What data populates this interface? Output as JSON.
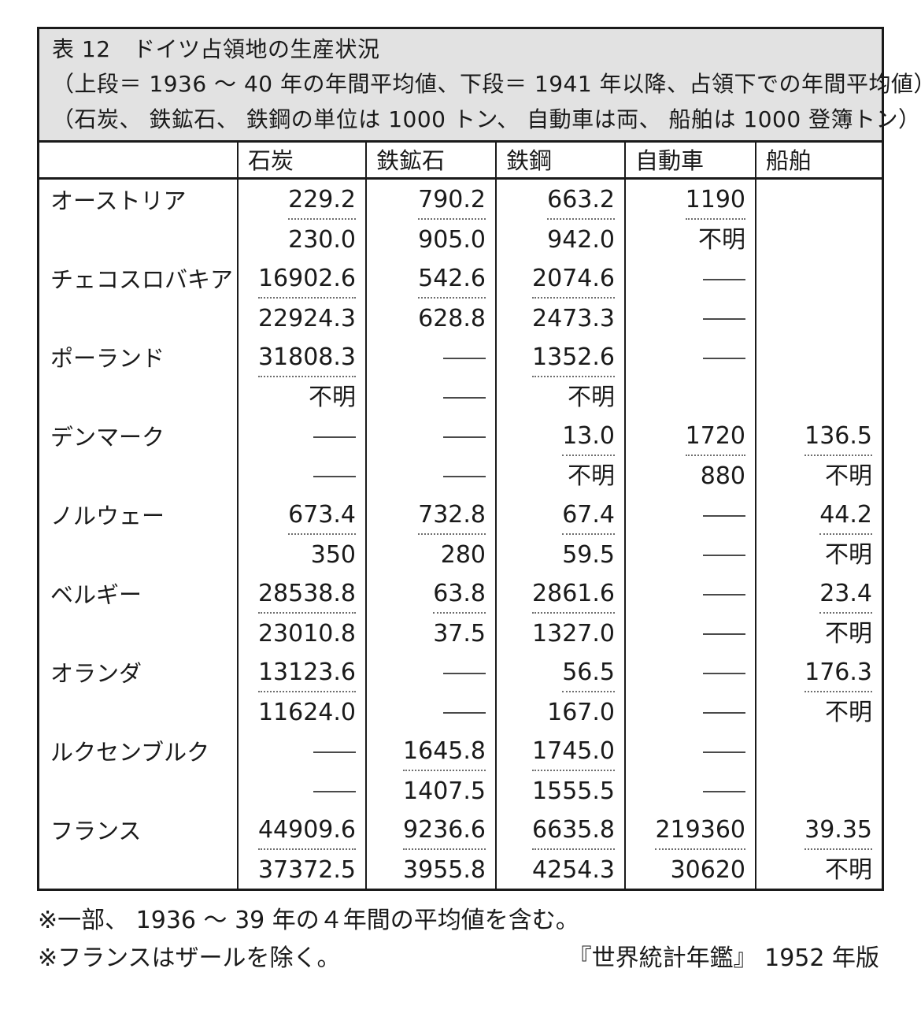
{
  "title": {
    "line1": "表 12　ドイツ占領地の生産状況",
    "line2": "（上段＝ 1936 〜 40 年の年間平均値、下段＝ 1941 年以降、占領下での年間平均値）",
    "line3": "（石炭、 鉄鉱石、 鉄鋼の単位は 1000 トン、 自動車は両、 船舶は 1000 登簿トン）"
  },
  "table": {
    "columns": [
      "石炭",
      "鉄鉱石",
      "鉄鋼",
      "自動車",
      "船舶"
    ],
    "row_structure": "each cell = [上段 1936-40 avg, 下段 1941+ avg]; — = dash (none), 不明 = unknown, empty = blank",
    "rows": [
      {
        "name": "オーストリア",
        "cells": [
          [
            "229.2",
            "230.0"
          ],
          [
            "790.2",
            "905.0"
          ],
          [
            "663.2",
            "942.0"
          ],
          [
            "1190",
            "不明"
          ],
          [
            "",
            ""
          ]
        ]
      },
      {
        "name": "チェコスロバキア",
        "cells": [
          [
            "16902.6",
            "22924.3"
          ],
          [
            "542.6",
            "628.8"
          ],
          [
            "2074.6",
            "2473.3"
          ],
          [
            "—",
            "—"
          ],
          [
            "",
            ""
          ]
        ]
      },
      {
        "name": "ポーランド",
        "cells": [
          [
            "31808.3",
            "不明"
          ],
          [
            "—",
            "—"
          ],
          [
            "1352.6",
            "不明"
          ],
          [
            "—",
            ""
          ],
          [
            "",
            ""
          ]
        ]
      },
      {
        "name": "デンマーク",
        "cells": [
          [
            "—",
            "—"
          ],
          [
            "—",
            "—"
          ],
          [
            "13.0",
            "不明"
          ],
          [
            "1720",
            "880"
          ],
          [
            "136.5",
            "不明"
          ]
        ]
      },
      {
        "name": "ノルウェー",
        "cells": [
          [
            "673.4",
            "350"
          ],
          [
            "732.8",
            "280"
          ],
          [
            "67.4",
            "59.5"
          ],
          [
            "—",
            "—"
          ],
          [
            "44.2",
            "不明"
          ]
        ]
      },
      {
        "name": "ベルギー",
        "cells": [
          [
            "28538.8",
            "23010.8"
          ],
          [
            "63.8",
            "37.5"
          ],
          [
            "2861.6",
            "1327.0"
          ],
          [
            "—",
            "—"
          ],
          [
            "23.4",
            "不明"
          ]
        ]
      },
      {
        "name": "オランダ",
        "cells": [
          [
            "13123.6",
            "11624.0"
          ],
          [
            "—",
            "—"
          ],
          [
            "56.5",
            "167.0"
          ],
          [
            "—",
            "—"
          ],
          [
            "176.3",
            "不明"
          ]
        ]
      },
      {
        "name": "ルクセンブルク",
        "cells": [
          [
            "—",
            "—"
          ],
          [
            "1645.8",
            "1407.5"
          ],
          [
            "1745.0",
            "1555.5"
          ],
          [
            "—",
            "—"
          ],
          [
            "",
            ""
          ]
        ]
      },
      {
        "name": "フランス",
        "cells": [
          [
            "44909.6",
            "37372.5"
          ],
          [
            "9236.6",
            "3955.8"
          ],
          [
            "6635.8",
            "4254.3"
          ],
          [
            "219360",
            "30620"
          ],
          [
            "39.35",
            "不明"
          ]
        ]
      }
    ]
  },
  "notes": {
    "note1": "※一部、 1936 〜 39 年の４年間の平均値を含む。",
    "note2": "※フランスはザールを除く。",
    "source": "『世界統計年鑑』 1952 年版"
  },
  "colors": {
    "title_background": "#e2e2e2",
    "border": "#1a1a1a",
    "text": "#1a1a1a",
    "dash_line": "#4a4a4a",
    "dotted_rule": "#6e6e6e",
    "page_background": "#ffffff"
  }
}
